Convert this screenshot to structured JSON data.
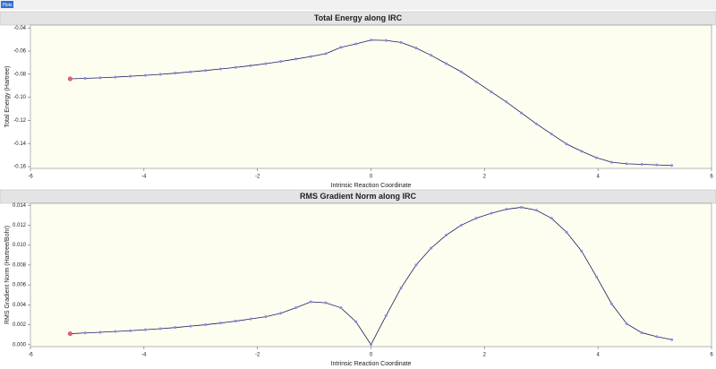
{
  "toolbar": {
    "button": "Plots"
  },
  "chart_data": [
    {
      "type": "line",
      "title": "Total Energy along IRC",
      "x_label": "Intrinsic Reaction Coordinate",
      "y_label": "Total Energy (Hartree)",
      "x": [
        -5.3,
        -5.035,
        -4.77,
        -4.505,
        -4.24,
        -3.975,
        -3.71,
        -3.445,
        -3.18,
        -2.915,
        -2.65,
        -2.385,
        -2.12,
        -1.855,
        -1.59,
        -1.325,
        -1.06,
        -0.795,
        -0.53,
        -0.265,
        0,
        0.265,
        0.53,
        0.795,
        1.06,
        1.325,
        1.59,
        1.855,
        2.12,
        2.385,
        2.65,
        2.915,
        3.18,
        3.445,
        3.71,
        3.975,
        4.24,
        4.505,
        4.77,
        5.035,
        5.3
      ],
      "series": [
        {
          "color": "#1c1c5c",
          "marker_color": "#8a8ae6",
          "highlight_color": "#d8607a",
          "values": [
            -0.084,
            -0.0836,
            -0.0831,
            -0.0825,
            -0.0818,
            -0.081,
            -0.0801,
            -0.0791,
            -0.078,
            -0.0768,
            -0.0755,
            -0.0741,
            -0.0726,
            -0.0709,
            -0.069,
            -0.0669,
            -0.0647,
            -0.0622,
            -0.0568,
            -0.0538,
            -0.0505,
            -0.0508,
            -0.0525,
            -0.0574,
            -0.0637,
            -0.0708,
            -0.0779,
            -0.0866,
            -0.0953,
            -0.104,
            -0.1135,
            -0.123,
            -0.1317,
            -0.1404,
            -0.1467,
            -0.1523,
            -0.1562,
            -0.1575,
            -0.158,
            -0.1585,
            -0.159
          ]
        }
      ],
      "xlim": [
        -6,
        6
      ],
      "xticks": [
        -6,
        -4,
        -2,
        0,
        2,
        4,
        6
      ],
      "ylim": [
        -0.1615,
        -0.0375
      ],
      "yticks": [
        -0.16,
        -0.14,
        -0.12,
        {
          "value": -0.1,
          "label": "-0.10"
        },
        -0.08,
        -0.06,
        -0.04
      ]
    },
    {
      "type": "line",
      "title": "RMS Gradient Norm along IRC",
      "x_label": "Intrinsic Reaction Coordinate",
      "y_label": "RMS Gradient Norm (Hartree/Bohr)",
      "x": [
        -5.3,
        -5.035,
        -4.77,
        -4.505,
        -4.24,
        -3.975,
        -3.71,
        -3.445,
        -3.18,
        -2.915,
        -2.65,
        -2.385,
        -2.12,
        -1.855,
        -1.59,
        -1.325,
        -1.06,
        -0.795,
        -0.53,
        -0.265,
        0,
        0.265,
        0.53,
        0.795,
        1.06,
        1.325,
        1.59,
        1.855,
        2.12,
        2.385,
        2.65,
        2.915,
        3.18,
        3.445,
        3.71,
        3.975,
        4.24,
        4.505,
        4.77,
        5.035,
        5.3
      ],
      "series": [
        {
          "color": "#1c1c5c",
          "marker_color": "#8a8ae6",
          "highlight_color": "#d8607a",
          "values": [
            0.0011,
            0.00117,
            0.00124,
            0.00132,
            0.0014,
            0.0015,
            0.0016,
            0.00172,
            0.00186,
            0.002,
            0.00217,
            0.00236,
            0.00258,
            0.0028,
            0.00315,
            0.0037,
            0.0043,
            0.0042,
            0.0037,
            0.0023,
            0.0,
            0.0029,
            0.0057,
            0.008,
            0.0097,
            0.011,
            0.012,
            0.0127,
            0.0132,
            0.0136,
            0.0138,
            0.0135,
            0.0127,
            0.0113,
            0.0094,
            0.0068,
            0.0041,
            0.0021,
            0.0012,
            0.0008,
            0.0005
          ]
        }
      ],
      "xlim": [
        -6,
        6
      ],
      "xticks": [
        -6,
        -4,
        -2,
        0,
        2,
        4,
        6
      ],
      "ylim": [
        -0.0002,
        0.0142
      ],
      "yticks": [
        {
          "value": 0,
          "label": "0.000"
        },
        0.002,
        0.004,
        0.006,
        0.008,
        {
          "value": 0.01,
          "label": "0.010"
        },
        0.012,
        0.014
      ]
    }
  ]
}
